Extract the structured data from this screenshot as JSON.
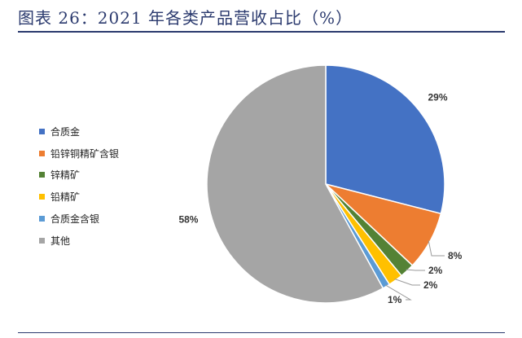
{
  "header": {
    "title": "图表 26：2021 年各类产品营收占比（%）"
  },
  "chart_data": {
    "type": "pie",
    "title": "",
    "categories": [
      "合质金",
      "铅锌铜精矿含银",
      "锌精矿",
      "铅精矿",
      "合质金含银",
      "其他"
    ],
    "values": [
      29,
      8,
      2,
      2,
      1,
      58
    ],
    "labels": [
      "29%",
      "8%",
      "2%",
      "2%",
      "1%",
      "58%"
    ],
    "colors": [
      "#4472C4",
      "#ED7D31",
      "#548235",
      "#FFC000",
      "#5B9BD5",
      "#A5A5A5"
    ],
    "legend_position": "left"
  }
}
